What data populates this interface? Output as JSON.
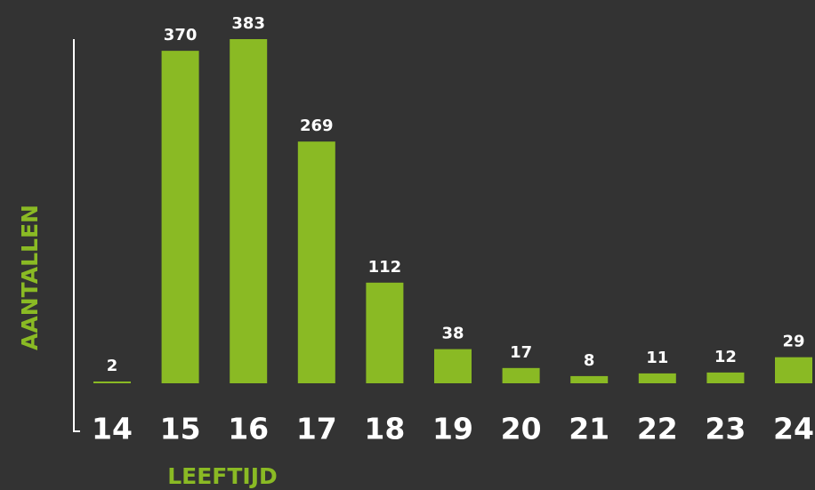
{
  "chart_data": {
    "type": "bar",
    "x_label": "LEEFTIJD",
    "y_label": "AANTALLEN",
    "categories": [
      "14",
      "15",
      "16",
      "17",
      "18",
      "19",
      "20",
      "21",
      "22",
      "23",
      "24"
    ],
    "values": [
      2,
      370,
      383,
      269,
      112,
      38,
      17,
      8,
      11,
      12,
      29
    ],
    "color": "#8aba24",
    "ylim": [
      0,
      383
    ]
  }
}
